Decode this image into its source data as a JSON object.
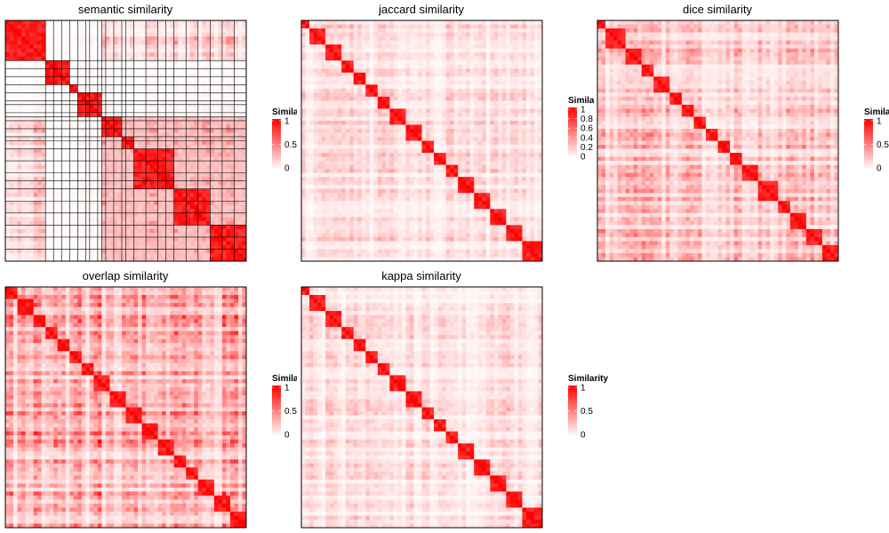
{
  "colors": {
    "low": "#ffffff",
    "high": "#ff0000",
    "border": "#000000",
    "grid": "#000000"
  },
  "chart_data": [
    {
      "type": "heatmap",
      "title": "semantic similarity",
      "legend": {
        "title": "Similarity",
        "ticks": [
          "1",
          "0.5",
          "0"
        ]
      },
      "n": 60,
      "blocks": [
        [
          0,
          10
        ],
        [
          10,
          16
        ],
        [
          16,
          18
        ],
        [
          18,
          24
        ],
        [
          24,
          29
        ],
        [
          29,
          32
        ],
        [
          32,
          42
        ],
        [
          42,
          51
        ],
        [
          51,
          60
        ]
      ],
      "grid_lines": true,
      "background_level": 0.18
    },
    {
      "type": "heatmap",
      "title": "jaccard similarity",
      "legend": {
        "title": "Similarity",
        "ticks": [
          "1",
          "0.8",
          "0.6",
          "0.4",
          "0.2",
          "0"
        ]
      },
      "n": 60,
      "blocks": [
        [
          0,
          2
        ],
        [
          2,
          6
        ],
        [
          6,
          10
        ],
        [
          10,
          13
        ],
        [
          13,
          16
        ],
        [
          16,
          19
        ],
        [
          19,
          22
        ],
        [
          22,
          26
        ],
        [
          26,
          30
        ],
        [
          30,
          33
        ],
        [
          33,
          36
        ],
        [
          36,
          39
        ],
        [
          39,
          43
        ],
        [
          43,
          47
        ],
        [
          47,
          51
        ],
        [
          51,
          55
        ],
        [
          55,
          60
        ]
      ],
      "grid_lines": false,
      "background_level": 0.12
    },
    {
      "type": "heatmap",
      "title": "dice similarity",
      "legend": {
        "title": "Similarity",
        "ticks": [
          "1",
          "0.5",
          "0"
        ]
      },
      "n": 60,
      "blocks": [
        [
          0,
          2
        ],
        [
          2,
          7
        ],
        [
          7,
          11
        ],
        [
          11,
          14
        ],
        [
          14,
          18
        ],
        [
          18,
          21
        ],
        [
          21,
          24
        ],
        [
          24,
          27
        ],
        [
          27,
          30
        ],
        [
          30,
          33
        ],
        [
          33,
          36
        ],
        [
          36,
          40
        ],
        [
          40,
          45
        ],
        [
          45,
          48
        ],
        [
          48,
          52
        ],
        [
          52,
          56
        ],
        [
          56,
          60
        ]
      ],
      "grid_lines": false,
      "background_level": 0.2
    },
    {
      "type": "heatmap",
      "title": "overlap similarity",
      "legend": {
        "title": "Similarity",
        "ticks": [
          "1",
          "0.5",
          "0"
        ]
      },
      "n": 60,
      "blocks": [
        [
          0,
          3
        ],
        [
          3,
          7
        ],
        [
          7,
          10
        ],
        [
          10,
          13
        ],
        [
          13,
          16
        ],
        [
          16,
          19
        ],
        [
          19,
          22
        ],
        [
          22,
          26
        ],
        [
          26,
          30
        ],
        [
          30,
          34
        ],
        [
          34,
          38
        ],
        [
          38,
          42
        ],
        [
          42,
          45
        ],
        [
          45,
          48
        ],
        [
          48,
          52
        ],
        [
          52,
          56
        ],
        [
          56,
          60
        ]
      ],
      "grid_lines": false,
      "background_level": 0.32
    },
    {
      "type": "heatmap",
      "title": "kappa similarity",
      "legend": {
        "title": "Similarity",
        "ticks": [
          "1",
          "0.5",
          "0"
        ]
      },
      "n": 60,
      "blocks": [
        [
          0,
          2
        ],
        [
          2,
          6
        ],
        [
          6,
          10
        ],
        [
          10,
          13
        ],
        [
          13,
          16
        ],
        [
          16,
          19
        ],
        [
          19,
          22
        ],
        [
          22,
          26
        ],
        [
          26,
          30
        ],
        [
          30,
          33
        ],
        [
          33,
          36
        ],
        [
          36,
          39
        ],
        [
          39,
          43
        ],
        [
          43,
          47
        ],
        [
          47,
          51
        ],
        [
          51,
          55
        ],
        [
          55,
          60
        ]
      ],
      "grid_lines": false,
      "background_level": 0.12
    }
  ]
}
